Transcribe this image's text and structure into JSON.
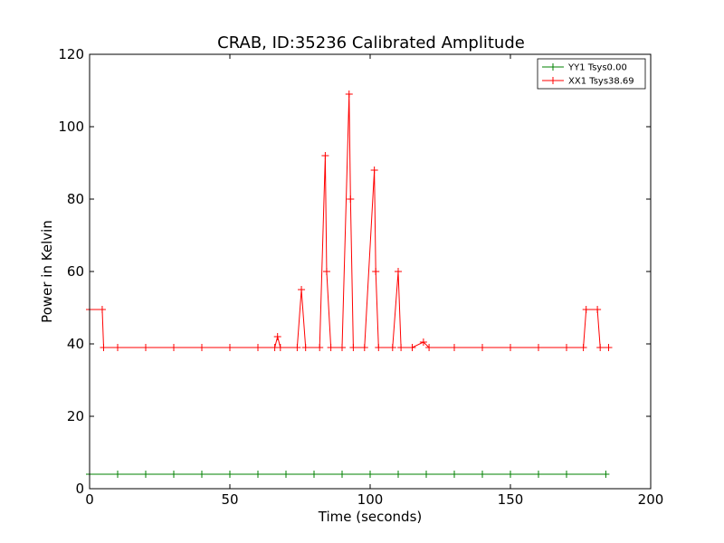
{
  "chart_data": {
    "type": "line",
    "title": "CRAB, ID:35236 Calibrated Amplitude",
    "xlabel": "Time (seconds)",
    "ylabel": "Power in Kelvin",
    "xlim": [
      0,
      200
    ],
    "ylim": [
      0,
      120
    ],
    "xticks": [
      0,
      50,
      100,
      150,
      200
    ],
    "yticks": [
      0,
      20,
      40,
      60,
      80,
      100,
      120
    ],
    "grid": false,
    "legend_position": "top-right",
    "marker": "+",
    "series": [
      {
        "name": "YY1 Tsys0.00",
        "color": "#008000",
        "x": [
          0,
          10,
          20,
          30,
          40,
          50,
          60,
          70,
          80,
          90,
          100,
          110,
          120,
          130,
          140,
          150,
          160,
          170,
          184
        ],
        "y": [
          4,
          4,
          4,
          4,
          4,
          4,
          4,
          4,
          4,
          4,
          4,
          4,
          4,
          4,
          4,
          4,
          4,
          4,
          4
        ]
      },
      {
        "name": "XX1 Tsys38.69",
        "color": "#ff0000",
        "x": [
          0,
          4.5,
          5,
          10,
          20,
          30,
          40,
          50,
          60,
          66,
          67,
          68,
          74,
          75.5,
          77,
          82,
          84,
          84.5,
          86,
          90,
          92.5,
          93,
          94,
          98,
          101.5,
          102,
          103,
          108,
          110,
          111,
          115,
          119,
          121,
          130,
          140,
          150,
          160,
          170,
          176,
          177,
          181,
          182,
          185
        ],
        "y": [
          49.5,
          49.5,
          39,
          39,
          39,
          39,
          39,
          39,
          39,
          39,
          42,
          39,
          39,
          55,
          39,
          39,
          92,
          60,
          39,
          39,
          109,
          80,
          39,
          39,
          88,
          60,
          39,
          39,
          60,
          39,
          39,
          40.5,
          39,
          39,
          39,
          39,
          39,
          39,
          39,
          49.5,
          49.5,
          39,
          39
        ]
      }
    ]
  }
}
